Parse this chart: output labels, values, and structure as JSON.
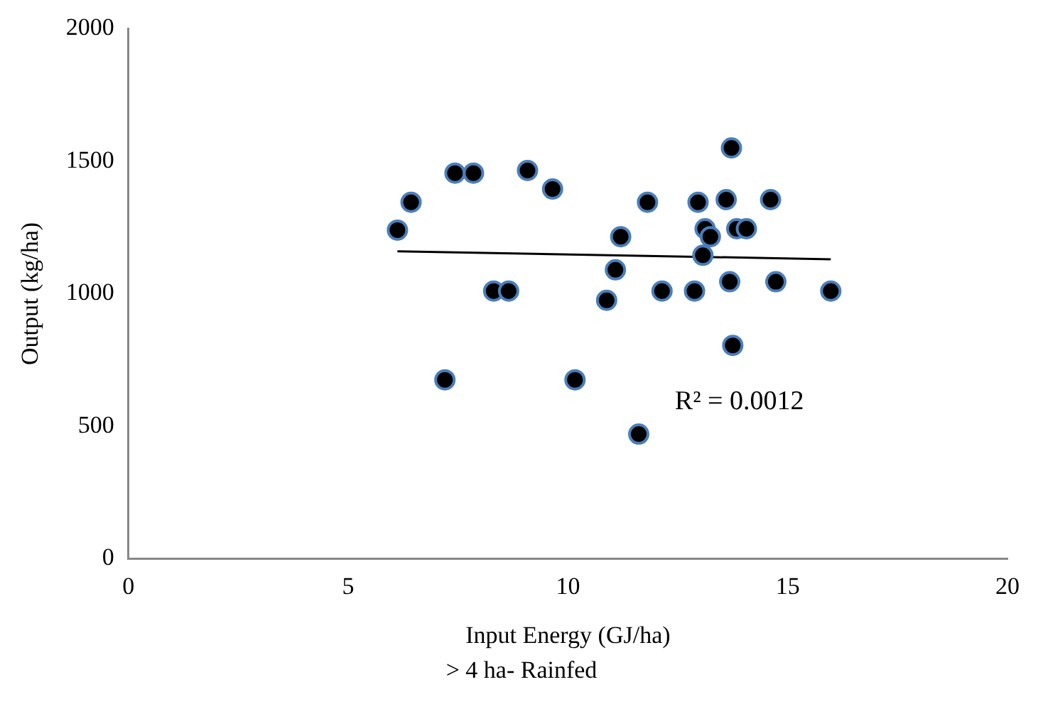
{
  "chart_data": {
    "type": "scatter",
    "xlabel": "Input Energy (GJ/ha)",
    "ylabel": "Output (kg/ha)",
    "xlim": [
      0,
      20
    ],
    "xticks": [
      0,
      5,
      10,
      15,
      20
    ],
    "ylim": [
      0,
      2000
    ],
    "yticks": [
      0,
      500,
      1000,
      1500,
      2000
    ],
    "grid": false,
    "legend": false,
    "marker": "circle",
    "series": [
      {
        "color": "#000000",
        "x": [
          6.12,
          6.43,
          7.43,
          7.85,
          9.08,
          9.65,
          8.31,
          8.65,
          7.2,
          13.72,
          11.81,
          12.96,
          13.6,
          14.61,
          11.2,
          13.12,
          13.24,
          13.84,
          14.06,
          13.07,
          11.08,
          10.88,
          12.14,
          12.88,
          13.68,
          14.73,
          15.98,
          13.75,
          10.16,
          11.61
        ],
        "values": [
          1240,
          1345,
          1455,
          1455,
          1465,
          1395,
          1010,
          1010,
          675,
          1550,
          1345,
          1345,
          1355,
          1355,
          1215,
          1245,
          1215,
          1245,
          1245,
          1145,
          1090,
          975,
          1010,
          1010,
          1045,
          1045,
          1010,
          805,
          675,
          470
        ]
      },
      {
        "type": "line",
        "color": "#000000",
        "marker": "none",
        "x": [
          6.12,
          15.98
        ],
        "values": [
          1160,
          1130
        ]
      }
    ],
    "annotations": [
      "R² = 0.0012",
      "> 4 ha- Rainfed"
    ]
  }
}
